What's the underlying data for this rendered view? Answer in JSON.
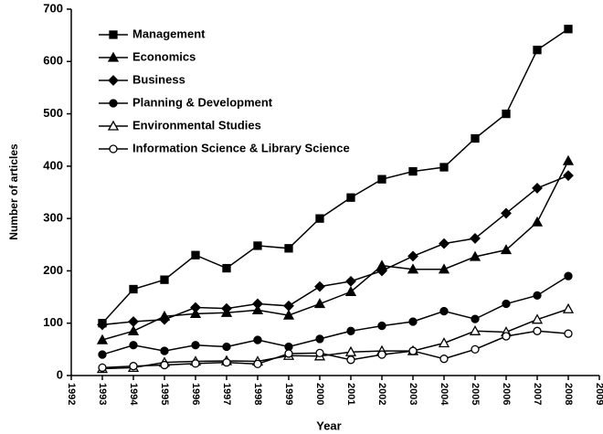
{
  "chart_data": {
    "type": "line",
    "x_label": "Year",
    "y_label": "Number of articles",
    "x": [
      1993,
      1994,
      1995,
      1996,
      1997,
      1998,
      1999,
      2000,
      2001,
      2002,
      2003,
      2004,
      2005,
      2006,
      2007,
      2008
    ],
    "xlim": [
      1992,
      2009
    ],
    "xticks": [
      1992,
      1993,
      1994,
      1995,
      1996,
      1997,
      1998,
      1999,
      2000,
      2001,
      2002,
      2003,
      2004,
      2005,
      2006,
      2007,
      2008,
      2009
    ],
    "ylim": [
      0,
      700
    ],
    "yticks": [
      0,
      100,
      200,
      300,
      400,
      500,
      600,
      700
    ],
    "grid": false,
    "legend": "upper-left",
    "series": [
      {
        "name": "Management",
        "color": "#000000",
        "marker": "square",
        "values": [
          100,
          165,
          183,
          230,
          205,
          248,
          243,
          300,
          340,
          375,
          390,
          398,
          453,
          500,
          622,
          662
        ]
      },
      {
        "name": "Economics",
        "color": "#000000",
        "marker": "triangle",
        "values": [
          68,
          85,
          113,
          118,
          120,
          125,
          115,
          137,
          160,
          210,
          203,
          203,
          227,
          240,
          293,
          410
        ]
      },
      {
        "name": "Business",
        "color": "#000000",
        "marker": "diamond",
        "values": [
          97,
          103,
          107,
          130,
          128,
          137,
          133,
          170,
          180,
          200,
          228,
          252,
          262,
          310,
          358,
          382
        ]
      },
      {
        "name": "Planning & Development",
        "color": "#000000",
        "marker": "circle",
        "values": [
          40,
          58,
          47,
          58,
          55,
          68,
          55,
          70,
          85,
          95,
          103,
          123,
          108,
          137,
          153,
          190
        ]
      },
      {
        "name": "Environmental Studies",
        "color": "#000000",
        "marker": "triangle-open",
        "values": [
          13,
          15,
          25,
          27,
          28,
          27,
          38,
          37,
          45,
          47,
          47,
          62,
          85,
          83,
          107,
          127
        ]
      },
      {
        "name": "Information Science & Library Science",
        "color": "#000000",
        "marker": "circle-open",
        "values": [
          15,
          18,
          20,
          23,
          25,
          22,
          42,
          43,
          30,
          40,
          47,
          32,
          50,
          75,
          85,
          80
        ]
      }
    ]
  }
}
